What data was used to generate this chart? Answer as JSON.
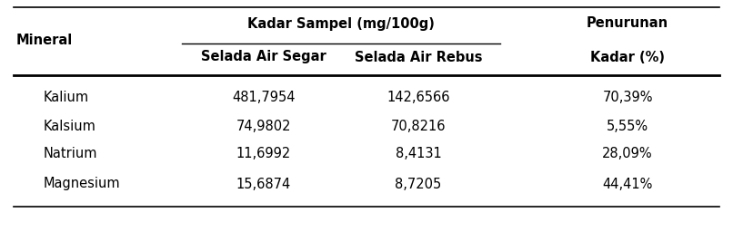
{
  "header_top_left": "Mineral",
  "header_top_center": "Kadar Sampel (mg/100g)",
  "header_top_right": "Penurunan",
  "header_mid_col1": "Selada Air Segar",
  "header_mid_col2": "Selada Air Rebus",
  "header_mid_col3": "Kadar (%)",
  "rows": [
    [
      "Kalium",
      "481,7954",
      "142,6566",
      "70,39%"
    ],
    [
      "Kalsium",
      "74,9802",
      "70,8216",
      "5,55%"
    ],
    [
      "Natrium",
      "11,6992",
      "8,4131",
      "28,09%"
    ],
    [
      "Magnesium",
      "15,6874",
      "8,7205",
      "44,41%"
    ]
  ],
  "bg_color": "#ffffff",
  "text_color": "#000000",
  "font_size": 10.5
}
